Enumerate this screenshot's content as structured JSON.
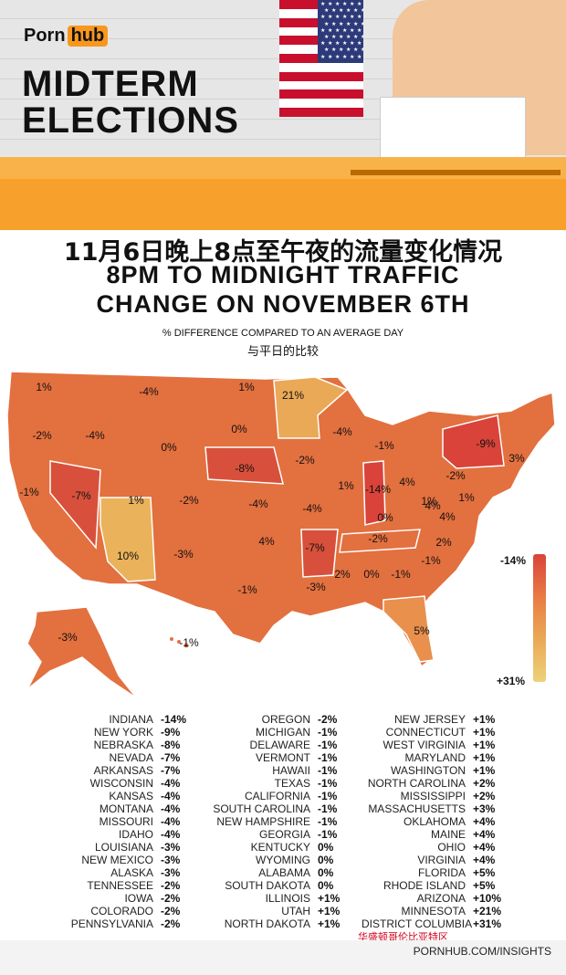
{
  "brand": {
    "logo_left": "Porn",
    "logo_right": "hub"
  },
  "header": {
    "title_line1": "MIDTERM",
    "title_line2": "ELECTIONS"
  },
  "chart_data": {
    "type": "choropleth",
    "title_cn": "11月6日晚上8点至午夜的流量变化情况",
    "title_en_line1": "8PM TO MIDNIGHT TRAFFIC",
    "title_en_line2": "CHANGE ON NOVEMBER 6TH",
    "subtitle_en": "% DIFFERENCE COMPARED TO AN AVERAGE DAY",
    "subtitle_cn": "与平日的比较",
    "legend": {
      "min_label": "-14%",
      "max_label": "+31%",
      "colors": [
        "#d9433a",
        "#e87b45",
        "#eaa957",
        "#eed17a"
      ]
    },
    "map_labels": [
      "1%",
      "-4%",
      "1%",
      "-2%",
      "-4%",
      "21%",
      "0%",
      "0%",
      "-8%",
      "-4%",
      "-2%",
      "-1%",
      "4%",
      "-1%",
      "-7%",
      "1%",
      "-2%",
      "-4%",
      "-4%",
      "1%",
      "-14%",
      "4%",
      "-2%",
      "-9%",
      "3%",
      "0%",
      "1%",
      "1%",
      "4%",
      "10%",
      "-3%",
      "4%",
      "-7%",
      "-2%",
      "2%",
      "-1%",
      "2%",
      "0%",
      "-1%",
      "-3%",
      "-1%",
      "5%",
      "-3%",
      "-1%"
    ],
    "rows": [
      [
        [
          "INDIANA",
          "-14%"
        ],
        [
          "OREGON",
          "-2%"
        ],
        [
          "NEW JERSEY",
          "+1%"
        ]
      ],
      [
        [
          "NEW YORK",
          "-9%"
        ],
        [
          "MICHIGAN",
          "-1%"
        ],
        [
          "CONNECTICUT",
          "+1%"
        ]
      ],
      [
        [
          "NEBRASKA",
          "-8%"
        ],
        [
          "DELAWARE",
          "-1%"
        ],
        [
          "WEST VIRGINIA",
          "+1%"
        ]
      ],
      [
        [
          "NEVADA",
          "-7%"
        ],
        [
          "VERMONT",
          "-1%"
        ],
        [
          "MARYLAND",
          "+1%"
        ]
      ],
      [
        [
          "ARKANSAS",
          "-7%"
        ],
        [
          "HAWAII",
          "-1%"
        ],
        [
          "WASHINGTON",
          "+1%"
        ]
      ],
      [
        [
          "WISCONSIN",
          "-4%"
        ],
        [
          "TEXAS",
          "-1%"
        ],
        [
          "NORTH CAROLINA",
          "+2%"
        ]
      ],
      [
        [
          "KANSAS",
          "-4%"
        ],
        [
          "CALIFORNIA",
          "-1%"
        ],
        [
          "MISSISSIPPI",
          "+2%"
        ]
      ],
      [
        [
          "MONTANA",
          "-4%"
        ],
        [
          "SOUTH CAROLINA",
          "-1%"
        ],
        [
          "MASSACHUSETTS",
          "+3%"
        ]
      ],
      [
        [
          "MISSOURI",
          "-4%"
        ],
        [
          "NEW HAMPSHIRE",
          "-1%"
        ],
        [
          "OKLAHOMA",
          "+4%"
        ]
      ],
      [
        [
          "IDAHO",
          "-4%"
        ],
        [
          "GEORGIA",
          "-1%"
        ],
        [
          "MAINE",
          "+4%"
        ]
      ],
      [
        [
          "LOUISIANA",
          "-3%"
        ],
        [
          "KENTUCKY",
          "0%"
        ],
        [
          "OHIO",
          "+4%"
        ]
      ],
      [
        [
          "NEW MEXICO",
          "-3%"
        ],
        [
          "WYOMING",
          "0%"
        ],
        [
          "VIRGINIA",
          "+4%"
        ]
      ],
      [
        [
          "ALASKA",
          "-3%"
        ],
        [
          "ALABAMA",
          "0%"
        ],
        [
          "FLORIDA",
          "+5%"
        ]
      ],
      [
        [
          "TENNESSEE",
          "-2%"
        ],
        [
          "SOUTH DAKOTA",
          "0%"
        ],
        [
          "RHODE ISLAND",
          "+5%"
        ]
      ],
      [
        [
          "IOWA",
          "-2%"
        ],
        [
          "ILLINOIS",
          "+1%"
        ],
        [
          "ARIZONA",
          "+10%"
        ]
      ],
      [
        [
          "COLORADO",
          "-2%"
        ],
        [
          "UTAH",
          "+1%"
        ],
        [
          "MINNESOTA",
          "+21%"
        ]
      ],
      [
        [
          "PENNSYLVANIA",
          "-2%"
        ],
        [
          "NORTH DAKOTA",
          "+1%"
        ],
        [
          "DISTRICT COLUMBIA",
          "+31%"
        ]
      ]
    ],
    "dc_cn_note": "华盛顿哥伦比亚特区"
  },
  "footer": {
    "url": "PORNHUB.COM/INSIGHTS"
  }
}
